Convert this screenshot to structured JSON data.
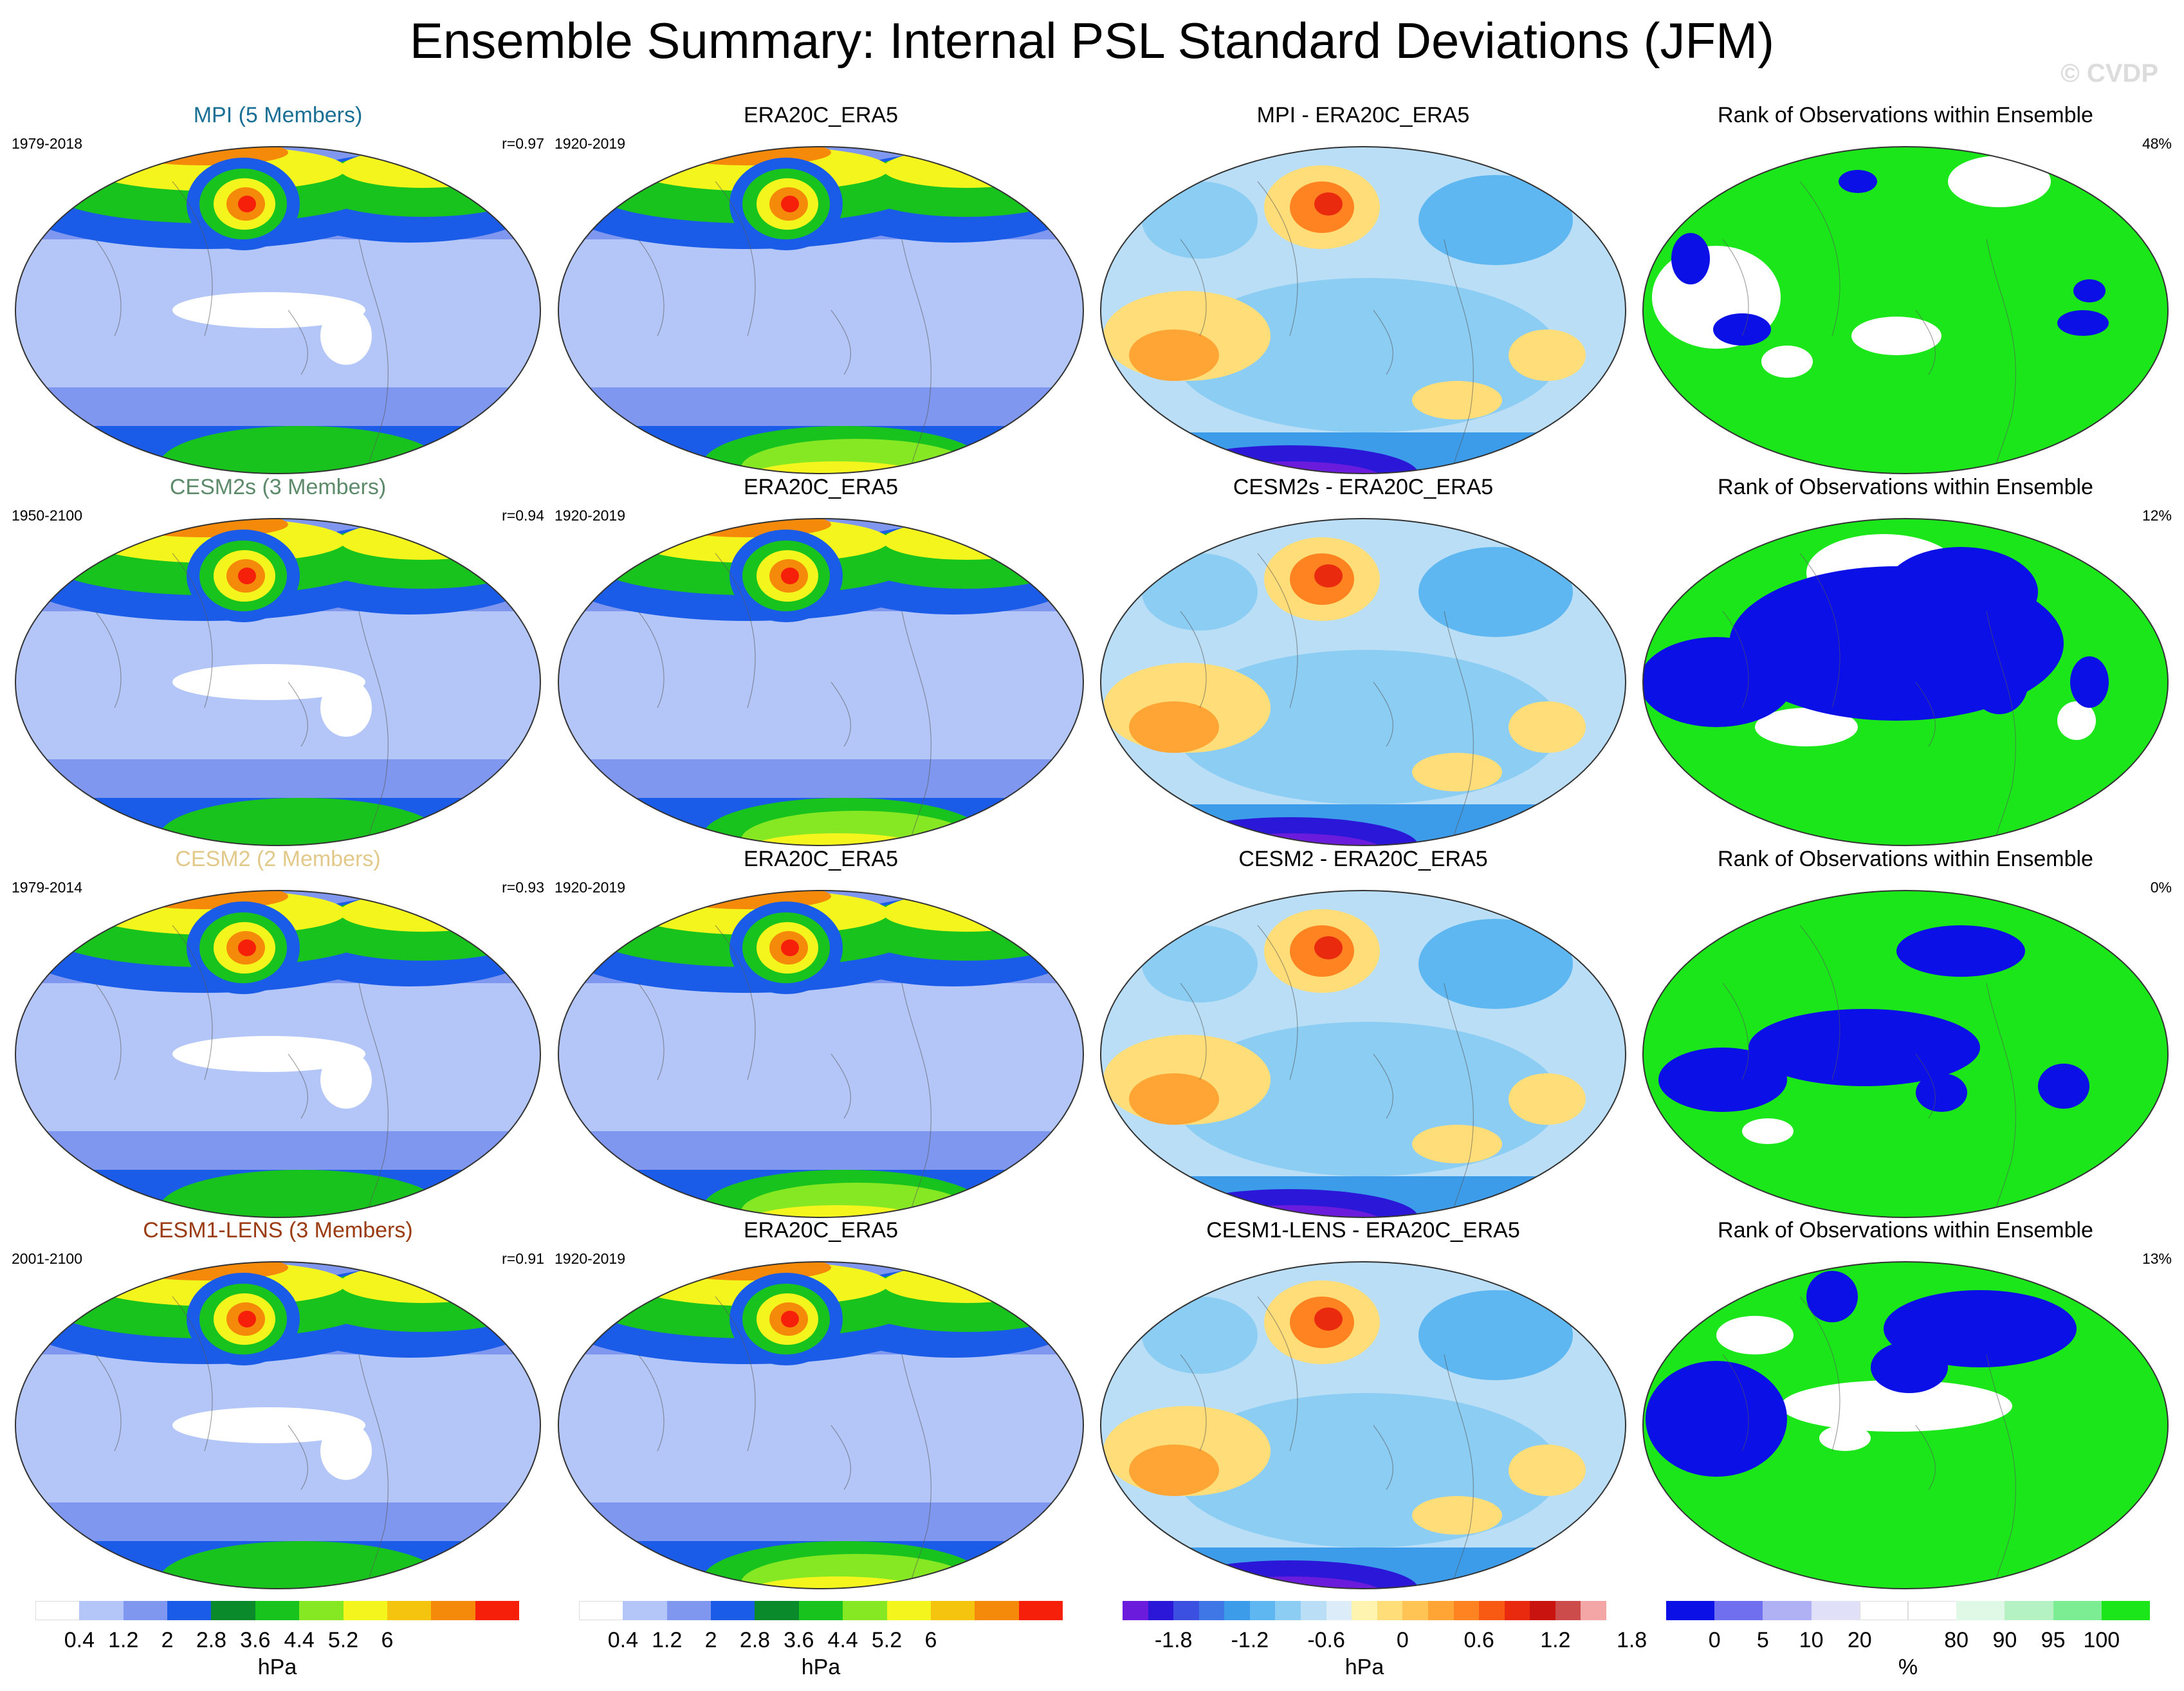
{
  "title": "Ensemble Summary: Internal PSL Standard Deviations (JFM)",
  "watermark": "© CVDP",
  "rows": [
    {
      "model": {
        "title": "MPI (5 Members)",
        "title_color": "#1a6f95",
        "years": "1979-2018",
        "stat": "r=0.97"
      },
      "obs": {
        "title": "ERA20C_ERA5",
        "years": "1920-2019"
      },
      "diff": {
        "title": "MPI - ERA20C_ERA5"
      },
      "rank": {
        "title": "Rank of Observations within Ensemble",
        "stat": "48%"
      }
    },
    {
      "model": {
        "title": "CESM2s (3 Members)",
        "title_color": "#5d8a6a",
        "years": "1950-2100",
        "stat": "r=0.94"
      },
      "obs": {
        "title": "ERA20C_ERA5",
        "years": "1920-2019"
      },
      "diff": {
        "title": "CESM2s - ERA20C_ERA5"
      },
      "rank": {
        "title": "Rank of Observations within Ensemble",
        "stat": "12%"
      }
    },
    {
      "model": {
        "title": "CESM2 (2 Members)",
        "title_color": "#e2c98a",
        "years": "1979-2014",
        "stat": "r=0.93"
      },
      "obs": {
        "title": "ERA20C_ERA5",
        "years": "1920-2019"
      },
      "diff": {
        "title": "CESM2 - ERA20C_ERA5"
      },
      "rank": {
        "title": "Rank of Observations within Ensemble",
        "stat": "0%"
      }
    },
    {
      "model": {
        "title": "CESM1-LENS (3 Members)",
        "title_color": "#9a3b12",
        "years": "2001-2100",
        "stat": "r=0.91"
      },
      "obs": {
        "title": "ERA20C_ERA5",
        "years": "1920-2019"
      },
      "diff": {
        "title": "CESM1-LENS - ERA20C_ERA5"
      },
      "rank": {
        "title": "Rank of Observations within Ensemble",
        "stat": "13%"
      }
    }
  ],
  "colorbars": {
    "std": {
      "unit": "hPa",
      "colors": [
        "#ffffff",
        "#b3c6f7",
        "#7f97ee",
        "#1a5ce8",
        "#0a8a2a",
        "#19c31d",
        "#86e822",
        "#f5f51e",
        "#f5c40e",
        "#f58a0a",
        "#f51f0a"
      ],
      "ticks": [
        "0.4",
        "1.2",
        "2",
        "2.8",
        "3.6",
        "4.4",
        "5.2",
        "6"
      ]
    },
    "diff": {
      "unit": "hPa",
      "colors": [
        "#6a1bdb",
        "#2a17d8",
        "#3b4fe0",
        "#3f78e6",
        "#3c9ce9",
        "#5eb7f0",
        "#8ccdf3",
        "#b9def5",
        "#dcecf8",
        "#fff3b0",
        "#ffde7a",
        "#ffc454",
        "#ffa535",
        "#ff8320",
        "#f85a14",
        "#e92a0e",
        "#c9130e",
        "#cc4c4c",
        "#f4a5a5"
      ],
      "ticks": [
        "-1.8",
        "-1.2",
        "-0.6",
        "0",
        "0.6",
        "1.2",
        "1.8"
      ]
    },
    "rank": {
      "unit": "%",
      "colors": [
        "#0a10e6",
        "#6f6ff0",
        "#b0b0f4",
        "#e0e0f8",
        "#ffffff",
        "#ffffff",
        "#e0f8e6",
        "#b4f2c4",
        "#7ced92",
        "#1ae61a"
      ],
      "ticks": [
        "0",
        "5",
        "10",
        "20",
        "80",
        "90",
        "95",
        "100"
      ]
    }
  }
}
